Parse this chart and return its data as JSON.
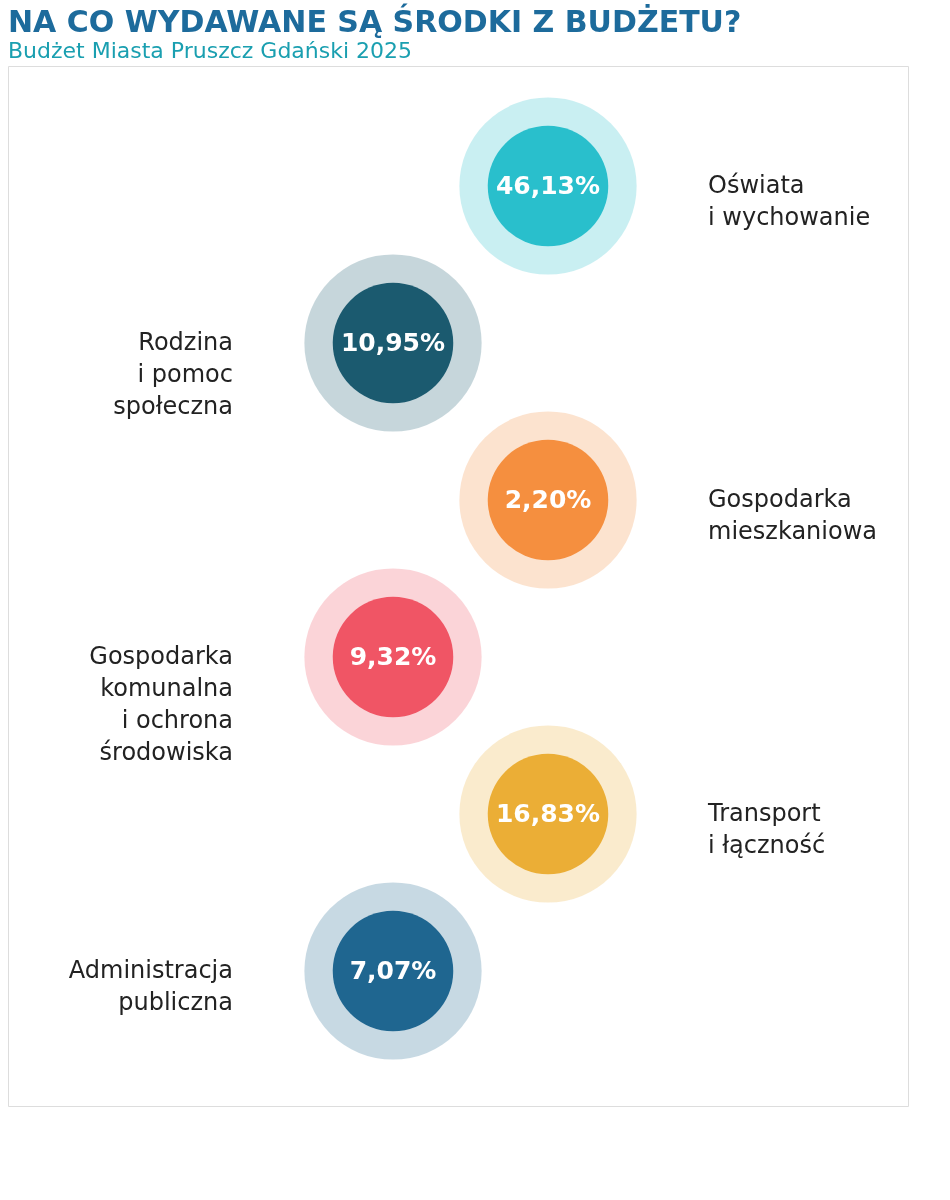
{
  "chart_data": {
    "type": "other",
    "title": "NA CO WYDAWANE SĄ ŚRODKI Z BUDŻETU?",
    "subtitle": "Budżet Miasta Pruszcz Gdański 2025",
    "categories": [
      "Oświata\ni wychowanie",
      "Rodzina\ni pomoc\nspołeczna",
      "Gospodarka\nmieszkaniowa",
      "Gospodarka\nkomunalna\ni ochrona\nśrodowiska",
      "Transport\ni łączność",
      "Administracja\npubliczna"
    ],
    "values": [
      46.13,
      10.95,
      2.2,
      9.32,
      16.83,
      7.07
    ],
    "value_labels": [
      "46,13%",
      "10,95%",
      "2,20%",
      "9,32%",
      "16,83%",
      "7,07%"
    ],
    "colors": [
      "#29bfcc",
      "#1b5a6f",
      "#f58f3f",
      "#f05565",
      "#ebae36",
      "#1f6690"
    ]
  }
}
